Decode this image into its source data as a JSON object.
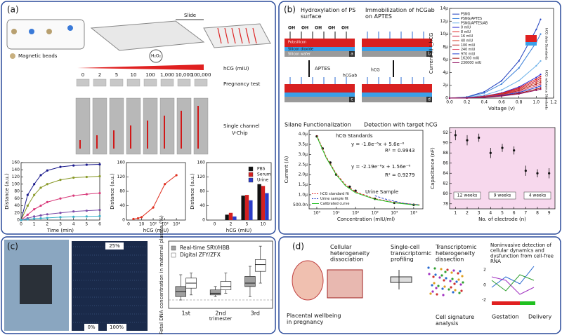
{
  "panel_a": {
    "label": "(a)",
    "magnetic_beads": "Magnetic beads",
    "slide": "Slide",
    "h2o2": "H₂O₂",
    "hcg_header": "hCG (mIU)",
    "concentrations": [
      "0",
      "2",
      "5",
      "10",
      "100",
      "1,000",
      "10,000",
      "100,000"
    ],
    "pregnancy_test": "Pregnancy test",
    "vchip": [
      "Single channel",
      "V-Chip"
    ],
    "chart_time": {
      "type": "line",
      "xlabel": "Time (min)",
      "ylabel": "Distance (a.u.)",
      "xlim": [
        0,
        6
      ],
      "xticks": [
        0,
        1,
        2,
        3,
        4,
        5,
        6
      ],
      "ylim": [
        0,
        160
      ],
      "yticks": [
        0,
        20,
        40,
        60,
        80,
        100,
        120,
        140,
        160
      ],
      "x": [
        0,
        0.5,
        1,
        1.5,
        2,
        3,
        4,
        5,
        6
      ],
      "series": [
        {
          "color": "#1a1a8c",
          "style": "line+points",
          "values": [
            0,
            70,
            100,
            125,
            138,
            148,
            152,
            154,
            155
          ]
        },
        {
          "color": "#8a9a2a",
          "style": "line+points",
          "values": [
            0,
            40,
            70,
            90,
            100,
            112,
            118,
            120,
            122
          ]
        },
        {
          "color": "#d83a7a",
          "style": "line+points",
          "values": [
            0,
            15,
            30,
            40,
            50,
            60,
            68,
            72,
            75
          ]
        },
        {
          "color": "#7a4aa8",
          "style": "line+points",
          "values": [
            0,
            5,
            10,
            13,
            16,
            20,
            24,
            26,
            28
          ]
        },
        {
          "color": "#3ab0c8",
          "style": "line+points",
          "values": [
            0,
            2,
            4,
            5,
            6,
            8,
            9,
            10,
            11
          ]
        }
      ]
    },
    "chart_dose": {
      "type": "line",
      "xlabel": "hCG (mIU)",
      "ylabel": "Distance (a.u.)",
      "xlog": true,
      "xlim": [
        0.5,
        60000
      ],
      "x_zero_label": "0",
      "xticks": [
        {
          "value": 10,
          "label": "10"
        },
        {
          "value": 100,
          "label": "10²"
        },
        {
          "value": 1000,
          "label": "10³"
        },
        {
          "value": 10000,
          "label": "10⁴"
        }
      ],
      "ylim": [
        0,
        160
      ],
      "yticks": [
        0,
        40,
        80,
        120,
        160
      ],
      "x": [
        2,
        5,
        10,
        100,
        1000,
        10000
      ],
      "series": [
        {
          "color": "#e03020",
          "style": "line+points",
          "values": [
            3,
            5,
            8,
            35,
            100,
            125
          ]
        }
      ]
    },
    "chart_fluid": {
      "type": "bar",
      "xlabel": "hCG (mIU)",
      "ylabel": "Distance (a.u.)",
      "categories": [
        "0",
        "2",
        "5",
        "10"
      ],
      "ylim": [
        0,
        160
      ],
      "yticks": [
        0,
        40,
        80,
        120,
        160
      ],
      "legend": "upper right",
      "series": [
        {
          "name": "PBS",
          "color": "#111111",
          "values": [
            0,
            15,
            68,
            100
          ]
        },
        {
          "name": "Serum",
          "color": "#d42020",
          "values": [
            0,
            20,
            70,
            95
          ]
        },
        {
          "name": "Urine",
          "color": "#2a3cc8",
          "values": [
            0,
            10,
            55,
            75
          ]
        }
      ]
    }
  },
  "panel_b": {
    "label": "(b)",
    "step_titles": [
      "Hydroxylation of PS surface",
      "Immobilization of hCGab on APTES",
      "Silane Functionalization",
      "Detection with target hCG"
    ],
    "layers": [
      "Polysilicon",
      "Silicon dioxide",
      "Silicon wafer"
    ],
    "oh": "OH",
    "aptes": "APTES",
    "hcgab": "hCGab",
    "hcg": "hCG",
    "sub_labels": [
      "a",
      "b",
      "c",
      "d"
    ],
    "chart_iv": {
      "type": "line",
      "xlabel": "Voltage (v)",
      "ylabel": "Current (I) I_hCG",
      "xlim": [
        0,
        1.2
      ],
      "xticks": [
        {
          "value": 0,
          "label": "0.0"
        },
        {
          "value": 0.2,
          "label": "0.2"
        },
        {
          "value": 0.4,
          "label": "0.4"
        },
        {
          "value": 0.6,
          "label": "0.6"
        },
        {
          "value": 0.8,
          "label": "0.8"
        },
        {
          "value": 1,
          "label": "1.0"
        },
        {
          "value": 1.2,
          "label": "1.2"
        }
      ],
      "ylim": [
        0,
        1.4e-05
      ],
      "yticks": [
        0,
        {
          "value": 2e-06,
          "label": "2μ"
        },
        {
          "value": 4e-06,
          "label": "4μ"
        },
        {
          "value": 6e-06,
          "label": "6μ"
        },
        {
          "value": 8e-06,
          "label": "8μ"
        },
        {
          "value": 1e-05,
          "label": "10μ"
        },
        {
          "value": 1.2e-05,
          "label": "12μ"
        },
        {
          "value": 1.4e-05,
          "label": "14μ"
        }
      ],
      "legend": "upper left",
      "x": [
        0,
        0.2,
        0.4,
        0.6,
        0.8,
        1,
        1.05
      ],
      "series": [
        {
          "name": "PSNG",
          "color": "#1f3fbf",
          "style": "line+points",
          "values": [
            0,
            1.8e-07,
            9.8e-07,
            2.7e-06,
            5.8e-06,
            1.07e-05,
            1.23e-05
          ]
        },
        {
          "name": "PSNG/APTES",
          "color": "#3a7fd8",
          "style": "line+points",
          "values": [
            0,
            1.5e-07,
            8e-07,
            2.2e-06,
            4.7e-06,
            8.7e-06,
            1e-05
          ]
        },
        {
          "name": "PSNG/APTES/AB",
          "color": "#6ab0e8",
          "style": "line+points",
          "values": [
            0,
            9e-08,
            4.6e-07,
            1.28e-06,
            2.73e-06,
            5.05e-06,
            5.8e-06
          ]
        },
        {
          "name": "0 mIU",
          "color": "#2a2ad0",
          "style": "line+points",
          "values": [
            0,
            6e-08,
            3e-07,
            8.1e-07,
            1.74e-06,
            3.22e-06,
            3.7e-06
          ]
        },
        {
          "name": "8 mIU",
          "color": "#e02020",
          "style": "line+points",
          "values": [
            0,
            5e-08,
            2.7e-07,
            7.5e-07,
            1.6e-06,
            2.96e-06,
            3.4e-06
          ]
        },
        {
          "name": "16 mIU",
          "color": "#c81a3a",
          "style": "line+points",
          "values": [
            0,
            5e-08,
            2.5e-07,
            6.8e-07,
            1.46e-06,
            2.7e-06,
            3.1e-06
          ]
        },
        {
          "name": "40 mIU",
          "color": "#d8402a",
          "style": "line+points",
          "values": [
            0,
            4e-08,
            2.2e-07,
            6.2e-07,
            1.32e-06,
            2.44e-06,
            2.8e-06
          ]
        },
        {
          "name": "100 mIU",
          "color": "#b02020",
          "style": "line+points",
          "values": [
            0,
            4e-08,
            2e-07,
            5.5e-07,
            1.18e-06,
            2.18e-06,
            2.5e-06
          ]
        },
        {
          "name": "240 mIU",
          "color": "#e0506a",
          "style": "line+points",
          "values": [
            0,
            3e-08,
            1.8e-07,
            4.8e-07,
            1.03e-06,
            1.91e-06,
            2.2e-06
          ]
        },
        {
          "name": "970 mIU",
          "color": "#2040d0",
          "style": "line+points",
          "values": [
            0,
            3e-08,
            1.5e-07,
            4.2e-07,
            8.9e-07,
            1.65e-06,
            1.9e-06
          ]
        },
        {
          "name": "16200 mIU",
          "color": "#a01010",
          "style": "line+points",
          "values": [
            0,
            2e-08,
            1.3e-07,
            3.5e-07,
            7.5e-07,
            1.39e-06,
            1.6e-06
          ]
        },
        {
          "name": "230000 mIU",
          "color": "#901060",
          "style": "line+points",
          "values": [
            0,
            2e-08,
            1.1e-07,
            3.1e-07,
            6.6e-07,
            1.22e-06,
            1.4e-06
          ]
        }
      ],
      "inset_labels": [
        "hCG data Standards",
        "hCG reference Standards"
      ]
    },
    "chart_cal": {
      "type": "line",
      "xlabel": "Concentration (mIU/ml)",
      "ylabel": "Current (A)",
      "xlog": true,
      "xlim": [
        0.4,
        300000
      ],
      "xticks": [
        {
          "value": 1,
          "label": "10⁰"
        },
        {
          "value": 10,
          "label": "10¹"
        },
        {
          "value": 100,
          "label": "10²"
        },
        {
          "value": 1000,
          "label": "10³"
        },
        {
          "value": 10000,
          "label": "10⁴"
        },
        {
          "value": 100000,
          "label": "10⁵"
        }
      ],
      "ylim": [
        3e-07,
        4.2e-06
      ],
      "yticks": [
        {
          "value": 5e-07,
          "label": "500.0n"
        },
        {
          "value": 1e-06,
          "label": "1.0μ"
        },
        {
          "value": 1.5e-06,
          "label": "1.5μ"
        },
        {
          "value": 2e-06,
          "label": "2.0μ"
        },
        {
          "value": 2.5e-06,
          "label": "2.5μ"
        },
        {
          "value": 3e-06,
          "label": "3.0μ"
        },
        {
          "value": 3.5e-06,
          "label": "3.5μ"
        },
        {
          "value": 4e-06,
          "label": "4.0μ"
        }
      ],
      "legend": "lower left",
      "series": [
        {
          "color": "#111111",
          "style": "points",
          "x": [
            1,
            2,
            5,
            10,
            50,
            100,
            1000,
            10000,
            100000
          ],
          "values": [
            3.9e-06,
            3.3e-06,
            2.6e-06,
            2e-06,
            1.4e-06,
            1.2e-06,
            8e-07,
            6e-07,
            5e-07
          ]
        },
        {
          "name": "hCG standard fit",
          "color": "#e02020",
          "style": "dashed",
          "x": [
            1,
            3,
            10,
            30,
            100,
            1000,
            10000,
            100000,
            200000
          ],
          "values": [
            3.95e-06,
            2.9e-06,
            2.05e-06,
            1.5e-06,
            1.15e-06,
            8e-07,
            6.2e-07,
            5.2e-07,
            5e-07
          ]
        },
        {
          "name": "Urine sample fit",
          "color": "#2a3cc8",
          "style": "dashed",
          "x": [
            1000,
            3000,
            10000,
            30000,
            100000,
            200000
          ],
          "values": [
            9.5e-07,
            8e-07,
            6.8e-07,
            5.8e-07,
            5.2e-07,
            5e-07
          ]
        },
        {
          "name": "Calibrated curve",
          "color": "#20c020",
          "style": "line",
          "x": [
            1,
            3,
            10,
            30,
            100,
            1000,
            10000,
            100000,
            200000
          ],
          "values": [
            3.9e-06,
            2.85e-06,
            2e-06,
            1.45e-06,
            1.1e-06,
            7.8e-07,
            6e-07,
            5e-07,
            4.8e-07
          ]
        }
      ],
      "annotations": [
        "hCG Standards",
        "y = -1.8e⁻⁶x + 5.6e⁻⁶",
        "R² = 0.9943",
        "y = -2.19e⁻⁶x + 1.56e⁻⁶",
        "R² = 0.9279",
        "Urine Sample"
      ]
    },
    "chart_cap": {
      "type": "line",
      "xlabel": "No. of electrode (n)",
      "ylabel": "Capacitance (nF)",
      "xlim": [
        0.5,
        9.5
      ],
      "xticks": [
        1,
        2,
        3,
        4,
        5,
        6,
        7,
        8,
        9
      ],
      "ylim": [
        77,
        93
      ],
      "yticks": [
        78,
        80,
        82,
        84,
        86,
        88,
        90,
        92
      ],
      "x": [
        1,
        2,
        3,
        4,
        5,
        6,
        7,
        8,
        9
      ],
      "series": [
        {
          "color": "#111111",
          "style": "points",
          "values": [
            91.5,
            90.5,
            91,
            88,
            89,
            88.5,
            84.5,
            84,
            84
          ],
          "errors": [
            1,
            1,
            0.8,
            1,
            0.8,
            0.8,
            1,
            0.8,
            1
          ]
        }
      ],
      "groups": [
        "12 weeks",
        "9 weeks",
        "4 weeks"
      ]
    }
  },
  "panel_c": {
    "label": "(c)",
    "grid_labels": [
      "25%",
      "0%",
      "100%"
    ],
    "chart_box": {
      "type": "box",
      "ylabel": "Fetal DNA concentration in maternal plasma (%)",
      "xlabel": "trimester",
      "categories": [
        "1st",
        "2nd",
        "3rd"
      ],
      "ylim": [
        -5,
        35
      ],
      "legend": "upper left",
      "series": [
        {
          "name": "Real-time SRY/HBB",
          "color": "#a0a0a0",
          "boxes": [
            [
              0,
              2,
              5,
              8,
              15
            ],
            [
              2,
              3,
              4,
              6,
              8
            ],
            [
              2,
              8,
              10,
              14,
              20
            ]
          ]
        },
        {
          "name": "Digital ZFY/ZFX",
          "color": "#ffffff",
          "boxes": [
            [
              3,
              7,
              10,
              13,
              16
            ],
            [
              4,
              6,
              8,
              11,
              16
            ],
            [
              10,
              17,
              21,
              24,
              32
            ]
          ]
        }
      ]
    }
  },
  "panel_d": {
    "label": "(d)",
    "texts": [
      "Cellular heterogeneity dissociation",
      "Single-cell transcriptomic profiling",
      "Transcriptomic heterogeneity dissection",
      "Noninvasive detection of cellular dynamics and dysfunction from cell-free RNA",
      "Placental wellbeing in pregnancy",
      "Cell signature analysis",
      "Gestation",
      "Delivery"
    ],
    "mini_axis": [
      "2",
      "0",
      "-2"
    ]
  }
}
